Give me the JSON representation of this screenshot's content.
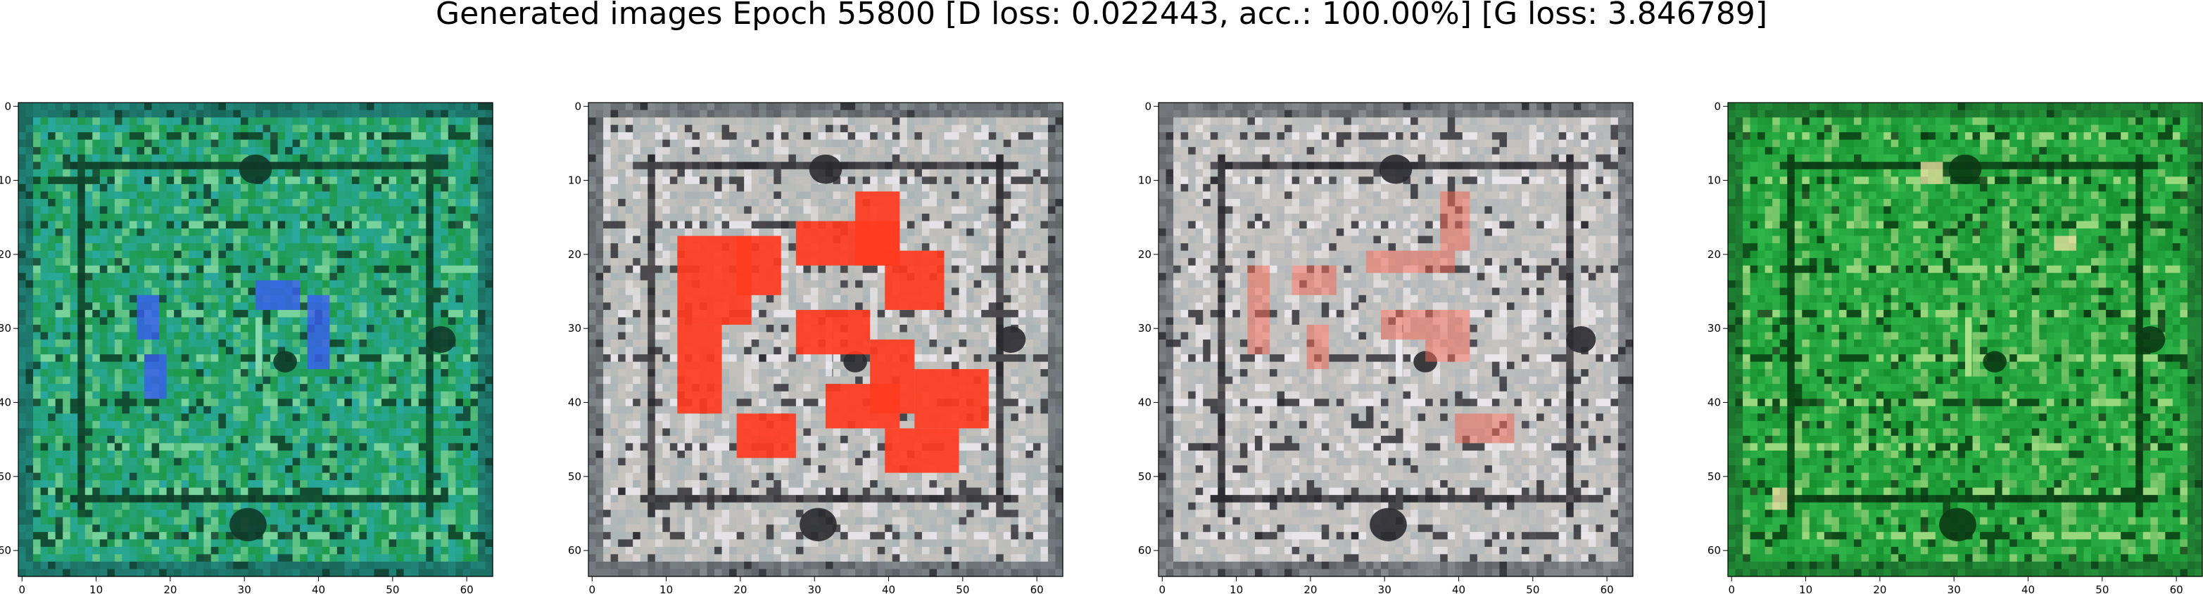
{
  "figure": {
    "suptitle": "Generated images Epoch 55800 [D loss: 0.022443, acc.: 100.00%] [G loss: 3.846789]"
  },
  "chart_data": [
    {
      "type": "image",
      "panel": 1,
      "description_tone": "teal-green",
      "colors": {
        "base": "#1e9a4a",
        "alt": "#2aa8a0",
        "dark": "#0f3a2a",
        "light": "#8fe0b0",
        "accent": "#3a5cf0"
      },
      "xlim": [
        0,
        64
      ],
      "ylim": [
        64,
        0
      ],
      "xticks": [
        "0",
        "10",
        "20",
        "30",
        "40",
        "50",
        "60"
      ],
      "yticks": [
        "0",
        "10",
        "20",
        "30",
        "40",
        "50",
        "60"
      ]
    },
    {
      "type": "image",
      "panel": 2,
      "description_tone": "grey-red",
      "colors": {
        "base": "#c9c3bd",
        "alt": "#a9b4b7",
        "dark": "#2a2a30",
        "light": "#ecebf2",
        "accent": "#ff3b1f"
      },
      "xlim": [
        0,
        64
      ],
      "ylim": [
        64,
        0
      ],
      "xticks": [
        "0",
        "10",
        "20",
        "30",
        "40",
        "50",
        "60"
      ],
      "yticks": [
        "0",
        "10",
        "20",
        "30",
        "40",
        "50",
        "60"
      ]
    },
    {
      "type": "image",
      "panel": 3,
      "description_tone": "grey-pink",
      "colors": {
        "base": "#cbc5c0",
        "alt": "#b1b7ba",
        "dark": "#2a2a30",
        "light": "#f0eef4",
        "accent": "#f06a55"
      },
      "xlim": [
        0,
        64
      ],
      "ylim": [
        64,
        0
      ],
      "xticks": [
        "0",
        "10",
        "20",
        "30",
        "40",
        "50",
        "60"
      ],
      "yticks": [
        "0",
        "10",
        "20",
        "30",
        "40",
        "50",
        "60"
      ]
    },
    {
      "type": "image",
      "panel": 4,
      "description_tone": "green",
      "colors": {
        "base": "#17912f",
        "alt": "#2fb54a",
        "dark": "#0b3a14",
        "light": "#b8e890",
        "accent": "#e8e0a0"
      },
      "xlim": [
        0,
        64
      ],
      "ylim": [
        64,
        0
      ],
      "xticks": [
        "0",
        "10",
        "20",
        "30",
        "40",
        "50",
        "60"
      ],
      "yticks": [
        "0",
        "10",
        "20",
        "30",
        "40",
        "50",
        "60"
      ]
    }
  ]
}
